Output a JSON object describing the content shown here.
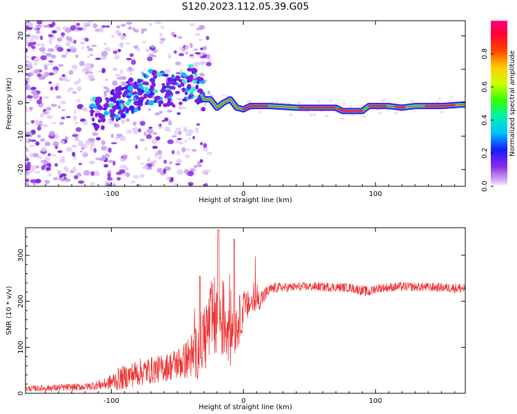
{
  "title": "S120.2023.112.05.39.G05",
  "chart_data": [
    {
      "type": "heatmap",
      "xlabel": "Height of straight line (km)",
      "ylabel": "Frequency (Hz)",
      "xlim": [
        -165,
        168
      ],
      "ylim": [
        -25,
        24.5
      ],
      "xticks": [
        -100,
        0,
        100
      ],
      "yticks": [
        -20,
        -10,
        0,
        10,
        20
      ],
      "colorbar": {
        "label": "Normalized spectral amplitude",
        "range": [
          0,
          1
        ],
        "ticks": [
          0.0,
          0.2,
          0.4,
          0.6,
          0.8
        ],
        "tick_labels": [
          "0.0",
          "0.2",
          "0.4",
          "0.6",
          "0.8"
        ]
      },
      "ridge": {
        "x": [
          -110,
          -100,
          -90,
          -80,
          -70,
          -60,
          -50,
          -40,
          -35,
          -30,
          -25,
          -20,
          -15,
          -10,
          -5,
          0,
          5,
          10,
          20,
          40,
          50,
          70,
          75,
          90,
          95,
          100,
          110,
          120,
          130,
          150,
          168
        ],
        "freq": [
          -3,
          -1.5,
          1,
          3,
          4.5,
          4,
          4,
          6,
          5,
          1,
          1,
          -1.5,
          0,
          1,
          -1.5,
          -2,
          -1,
          -1,
          -1,
          -1.5,
          -1.5,
          -1.5,
          -2.5,
          -2.5,
          -1,
          -1,
          -1,
          -1.5,
          -1,
          -1,
          -0.5
        ]
      },
      "grid": false
    },
    {
      "type": "line",
      "xlabel": "Height of straight line (km)",
      "ylabel": "SNR (10 * v/v)",
      "xlim": [
        -165,
        168
      ],
      "ylim": [
        0,
        360
      ],
      "xticks": [
        -100,
        0,
        100
      ],
      "yticks": [
        0,
        100,
        200,
        300
      ],
      "series_color": "#ee3333",
      "envelope": {
        "x": [
          -165,
          -140,
          -120,
          -105,
          -95,
          -80,
          -60,
          -45,
          -35,
          -30,
          -25,
          -20,
          -15,
          -10,
          -5,
          0,
          5,
          10,
          15,
          20,
          25,
          30,
          50,
          80,
          95,
          100,
          120,
          150,
          168
        ],
        "level": [
          10,
          12,
          14,
          20,
          30,
          45,
          55,
          70,
          90,
          120,
          150,
          170,
          160,
          140,
          150,
          180,
          195,
          200,
          210,
          225,
          230,
          230,
          232,
          230,
          220,
          228,
          232,
          230,
          228
        ],
        "amplitude": [
          6,
          8,
          8,
          12,
          25,
          30,
          30,
          40,
          60,
          80,
          90,
          100,
          90,
          90,
          60,
          40,
          30,
          25,
          20,
          12,
          12,
          10,
          10,
          10,
          12,
          10,
          10,
          10,
          12
        ]
      },
      "grid": false
    }
  ],
  "colors": {
    "line": "#ee3333",
    "axes": "#000000"
  }
}
